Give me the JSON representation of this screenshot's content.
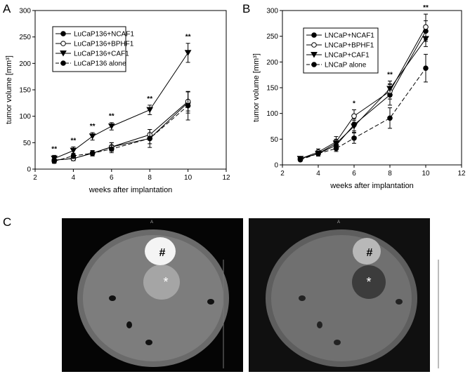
{
  "panels": [
    "A",
    "B",
    "C"
  ],
  "images": [
    {
      "orientation": "A",
      "labels": [
        "#",
        "*"
      ]
    },
    {
      "orientation": "A",
      "labels": [
        "#",
        "*"
      ]
    }
  ],
  "chart_data": [
    {
      "type": "line",
      "xlabel": "weeks after implantation",
      "ylabel": "tumor volume [mm³]",
      "xlim": [
        2,
        12
      ],
      "xticks": [
        2,
        4,
        6,
        8,
        10,
        12
      ],
      "ylim": [
        0,
        300
      ],
      "yticks": [
        0,
        50,
        100,
        150,
        200,
        250,
        300
      ],
      "x": [
        3,
        4,
        5,
        6,
        8,
        10
      ],
      "legend": "upper left",
      "series": [
        {
          "name": "LuCaP136+NCAF1",
          "color": "#000000",
          "marker": "circle",
          "fill": true,
          "dashed": false,
          "values": [
            17,
            20,
            30,
            42,
            58,
            126
          ],
          "errors": [
            5,
            4,
            5,
            8,
            10,
            20
          ]
        },
        {
          "name": "LuCaP136+BPHF1",
          "color": "#000000",
          "marker": "circle",
          "fill": false,
          "dashed": false,
          "values": [
            17,
            20,
            30,
            42,
            65,
            128
          ],
          "errors": [
            5,
            4,
            5,
            8,
            10,
            18
          ]
        },
        {
          "name": "LuCaP136+CAF1",
          "color": "#000000",
          "marker": "triangle",
          "fill": true,
          "dashed": false,
          "values": [
            20,
            35,
            62,
            81,
            112,
            220
          ],
          "errors": [
            6,
            7,
            7,
            7,
            9,
            18
          ]
        },
        {
          "name": "LuCaP136 alone",
          "color": "#000000",
          "marker": "circle",
          "fill": true,
          "dashed": true,
          "values": [
            15,
            25,
            30,
            38,
            58,
            120
          ],
          "errors": [
            4,
            5,
            5,
            7,
            17,
            27
          ]
        }
      ],
      "annotations": [
        {
          "x": 3,
          "label": "**"
        },
        {
          "x": 4,
          "label": "**"
        },
        {
          "x": 5,
          "label": "**"
        },
        {
          "x": 6,
          "label": "**"
        },
        {
          "x": 8,
          "label": "**"
        },
        {
          "x": 10,
          "label": "**"
        }
      ]
    },
    {
      "type": "line",
      "xlabel": "weeks after implantation",
      "ylabel": "tumor volume [mm³]",
      "xlim": [
        2,
        12
      ],
      "xticks": [
        2,
        4,
        6,
        8,
        10,
        12
      ],
      "ylim": [
        0,
        300
      ],
      "yticks": [
        0,
        50,
        100,
        150,
        200,
        250,
        300
      ],
      "x": [
        3,
        4,
        5,
        6,
        8,
        10
      ],
      "legend": "upper left",
      "series": [
        {
          "name": "LNCaP+NCAF1",
          "color": "#000000",
          "marker": "circle",
          "fill": true,
          "dashed": false,
          "values": [
            12,
            22,
            38,
            78,
            136,
            260
          ],
          "errors": [
            3,
            5,
            8,
            12,
            20,
            20
          ]
        },
        {
          "name": "LNCaP+BPHF1",
          "color": "#000000",
          "marker": "circle",
          "fill": false,
          "dashed": false,
          "values": [
            12,
            25,
            45,
            95,
            143,
            268
          ],
          "errors": [
            3,
            6,
            10,
            12,
            15,
            25
          ]
        },
        {
          "name": "LNCaP+CAF1",
          "color": "#000000",
          "marker": "triangle",
          "fill": true,
          "dashed": false,
          "values": [
            12,
            22,
            42,
            75,
            148,
            245
          ],
          "errors": [
            3,
            5,
            8,
            12,
            15,
            15
          ]
        },
        {
          "name": "LNCaP alone",
          "color": "#000000",
          "marker": "circle",
          "fill": true,
          "dashed": true,
          "values": [
            10,
            22,
            32,
            52,
            91,
            188
          ],
          "errors": [
            3,
            4,
            6,
            10,
            20,
            27
          ]
        }
      ],
      "annotations": [
        {
          "x": 6,
          "label": "*"
        },
        {
          "x": 8,
          "label": "**"
        },
        {
          "x": 10,
          "label": "**"
        }
      ]
    }
  ]
}
